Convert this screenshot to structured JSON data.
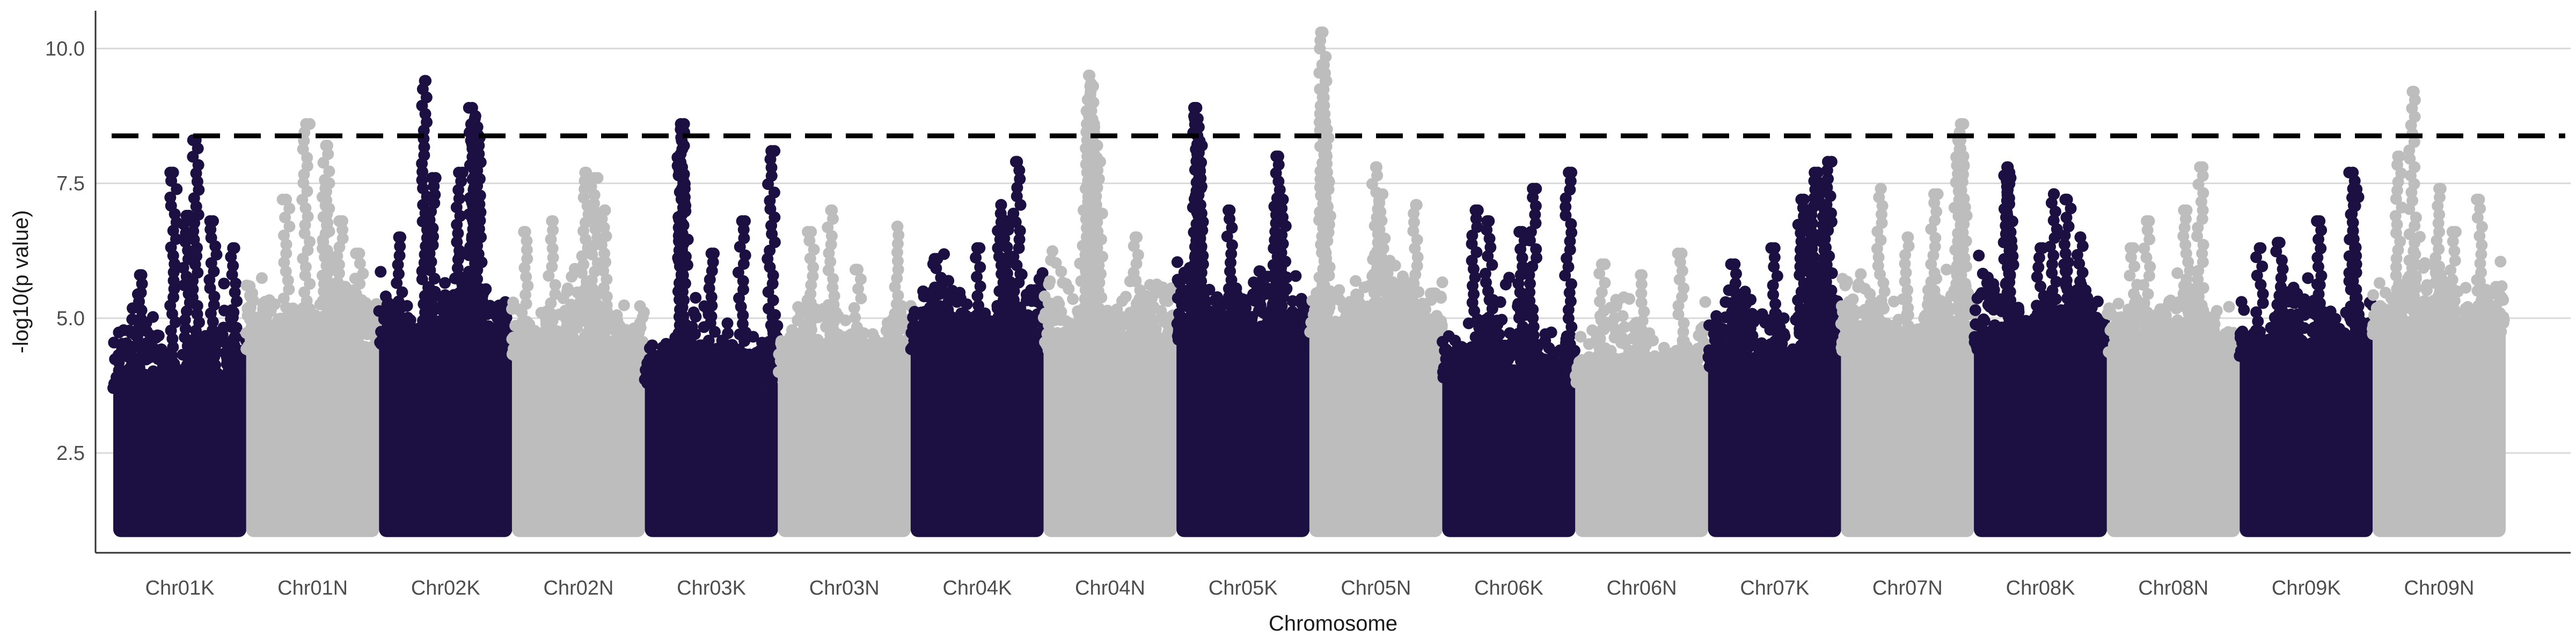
{
  "chart_data": {
    "type": "scatter",
    "title": "",
    "xlabel": "Chromosome",
    "ylabel": "-log10(p value)",
    "ylim": [
      0.65,
      10.7
    ],
    "y_ticks": [
      2.5,
      5.0,
      7.5,
      10.0
    ],
    "y_tick_labels": [
      "2.5",
      "5.0",
      "7.5",
      "10.0"
    ],
    "grid": "horizontal-major",
    "legend": "none",
    "threshold": 8.38,
    "colors": {
      "dark": "#1c0f42",
      "light": "#bdbdbd",
      "threshold": "#000000"
    },
    "categories": [
      "Chr01K",
      "Chr01N",
      "Chr02K",
      "Chr02N",
      "Chr03K",
      "Chr03N",
      "Chr04K",
      "Chr04N",
      "Chr05K",
      "Chr05N",
      "Chr06K",
      "Chr06N",
      "Chr07K",
      "Chr07N",
      "Chr08K",
      "Chr08N",
      "Chr09K",
      "Chr09N"
    ],
    "series": [
      {
        "category": "Chr01K",
        "color": "dark",
        "base_top": 4.3,
        "peaks": [
          [
            0.55,
            6.9
          ],
          [
            0.75,
            6.8
          ],
          [
            0.45,
            7.7
          ],
          [
            0.62,
            8.3
          ],
          [
            0.9,
            6.3
          ],
          [
            0.2,
            5.8
          ]
        ]
      },
      {
        "category": "Chr01N",
        "color": "light",
        "base_top": 5.0,
        "peaks": [
          [
            0.45,
            8.6
          ],
          [
            0.6,
            8.2
          ],
          [
            0.6,
            7.5
          ],
          [
            0.3,
            7.2
          ],
          [
            0.7,
            6.8
          ],
          [
            0.85,
            6.2
          ]
        ]
      },
      {
        "category": "Chr02K",
        "color": "dark",
        "base_top": 5.1,
        "peaks": [
          [
            0.35,
            9.4
          ],
          [
            0.7,
            8.9
          ],
          [
            0.72,
            8.7
          ],
          [
            0.73,
            8.5
          ],
          [
            0.75,
            8.2
          ],
          [
            0.6,
            7.7
          ],
          [
            0.4,
            7.6
          ],
          [
            0.15,
            6.5
          ]
        ]
      },
      {
        "category": "Chr02N",
        "color": "light",
        "base_top": 4.9,
        "peaks": [
          [
            0.55,
            7.7
          ],
          [
            0.62,
            7.6
          ],
          [
            0.7,
            7.0
          ],
          [
            0.1,
            6.6
          ],
          [
            0.3,
            6.8
          ]
        ]
      },
      {
        "category": "Chr03K",
        "color": "dark",
        "base_top": 4.4,
        "peaks": [
          [
            0.27,
            8.6
          ],
          [
            0.28,
            8.5
          ],
          [
            0.95,
            8.1
          ],
          [
            0.28,
            7.8
          ],
          [
            0.3,
            7.4
          ],
          [
            0.73,
            6.8
          ],
          [
            0.5,
            6.2
          ]
        ]
      },
      {
        "category": "Chr03N",
        "color": "light",
        "base_top": 4.6,
        "peaks": [
          [
            0.4,
            7.0
          ],
          [
            0.25,
            6.6
          ],
          [
            0.9,
            6.7
          ],
          [
            0.6,
            5.9
          ]
        ]
      },
      {
        "category": "Chr04K",
        "color": "dark",
        "base_top": 5.0,
        "peaks": [
          [
            0.8,
            7.9
          ],
          [
            0.68,
            7.1
          ],
          [
            0.72,
            6.8
          ],
          [
            0.5,
            6.3
          ],
          [
            0.2,
            6.1
          ]
        ]
      },
      {
        "category": "Chr04N",
        "color": "light",
        "base_top": 5.0,
        "peaks": [
          [
            0.34,
            9.5
          ],
          [
            0.35,
            9.3
          ],
          [
            0.36,
            9.0
          ],
          [
            0.38,
            8.6
          ],
          [
            0.4,
            8.2
          ],
          [
            0.42,
            7.9
          ],
          [
            0.3,
            7.0
          ],
          [
            0.7,
            6.5
          ]
        ]
      },
      {
        "category": "Chr05K",
        "color": "dark",
        "base_top": 5.2,
        "peaks": [
          [
            0.15,
            8.9
          ],
          [
            0.16,
            8.7
          ],
          [
            0.18,
            8.2
          ],
          [
            0.75,
            8.0
          ],
          [
            0.17,
            7.6
          ],
          [
            0.4,
            7.0
          ],
          [
            0.8,
            7.2
          ]
        ]
      },
      {
        "category": "Chr05N",
        "color": "light",
        "base_top": 5.3,
        "peaks": [
          [
            0.1,
            10.3
          ],
          [
            0.1,
            9.7
          ],
          [
            0.12,
            8.5
          ],
          [
            0.13,
            8.0
          ],
          [
            0.5,
            7.8
          ],
          [
            0.55,
            7.3
          ],
          [
            0.8,
            7.1
          ]
        ]
      },
      {
        "category": "Chr06K",
        "color": "dark",
        "base_top": 4.5,
        "peaks": [
          [
            0.95,
            7.7
          ],
          [
            0.25,
            7.0
          ],
          [
            0.68,
            7.4
          ],
          [
            0.35,
            6.8
          ],
          [
            0.6,
            6.6
          ]
        ]
      },
      {
        "category": "Chr06N",
        "color": "light",
        "base_top": 4.4,
        "peaks": [
          [
            0.2,
            6.0
          ],
          [
            0.5,
            5.8
          ],
          [
            0.8,
            6.2
          ]
        ]
      },
      {
        "category": "Chr07K",
        "color": "dark",
        "base_top": 4.7,
        "peaks": [
          [
            0.9,
            7.9
          ],
          [
            0.8,
            7.7
          ],
          [
            0.85,
            7.5
          ],
          [
            0.7,
            7.2
          ],
          [
            0.75,
            7.0
          ],
          [
            0.5,
            6.3
          ],
          [
            0.2,
            6.0
          ]
        ]
      },
      {
        "category": "Chr07N",
        "color": "light",
        "base_top": 5.0,
        "peaks": [
          [
            0.9,
            8.6
          ],
          [
            0.88,
            8.3
          ],
          [
            0.92,
            8.0
          ],
          [
            0.7,
            7.3
          ],
          [
            0.3,
            7.4
          ],
          [
            0.5,
            6.5
          ]
        ]
      },
      {
        "category": "Chr08K",
        "color": "dark",
        "base_top": 5.0,
        "peaks": [
          [
            0.25,
            7.8
          ],
          [
            0.26,
            7.7
          ],
          [
            0.27,
            7.6
          ],
          [
            0.6,
            7.3
          ],
          [
            0.7,
            7.2
          ],
          [
            0.8,
            6.5
          ],
          [
            0.5,
            6.3
          ]
        ]
      },
      {
        "category": "Chr08N",
        "color": "light",
        "base_top": 4.9,
        "peaks": [
          [
            0.7,
            7.8
          ],
          [
            0.6,
            7.0
          ],
          [
            0.3,
            6.8
          ],
          [
            0.2,
            6.3
          ]
        ]
      },
      {
        "category": "Chr09K",
        "color": "dark",
        "base_top": 4.9,
        "peaks": [
          [
            0.85,
            7.7
          ],
          [
            0.87,
            7.4
          ],
          [
            0.6,
            6.8
          ],
          [
            0.3,
            6.4
          ],
          [
            0.15,
            6.3
          ]
        ]
      },
      {
        "category": "Chr09N",
        "color": "light",
        "base_top": 5.3,
        "peaks": [
          [
            0.3,
            9.2
          ],
          [
            0.2,
            8.0
          ],
          [
            0.5,
            7.4
          ],
          [
            0.8,
            7.2
          ],
          [
            0.6,
            6.6
          ]
        ]
      }
    ]
  }
}
